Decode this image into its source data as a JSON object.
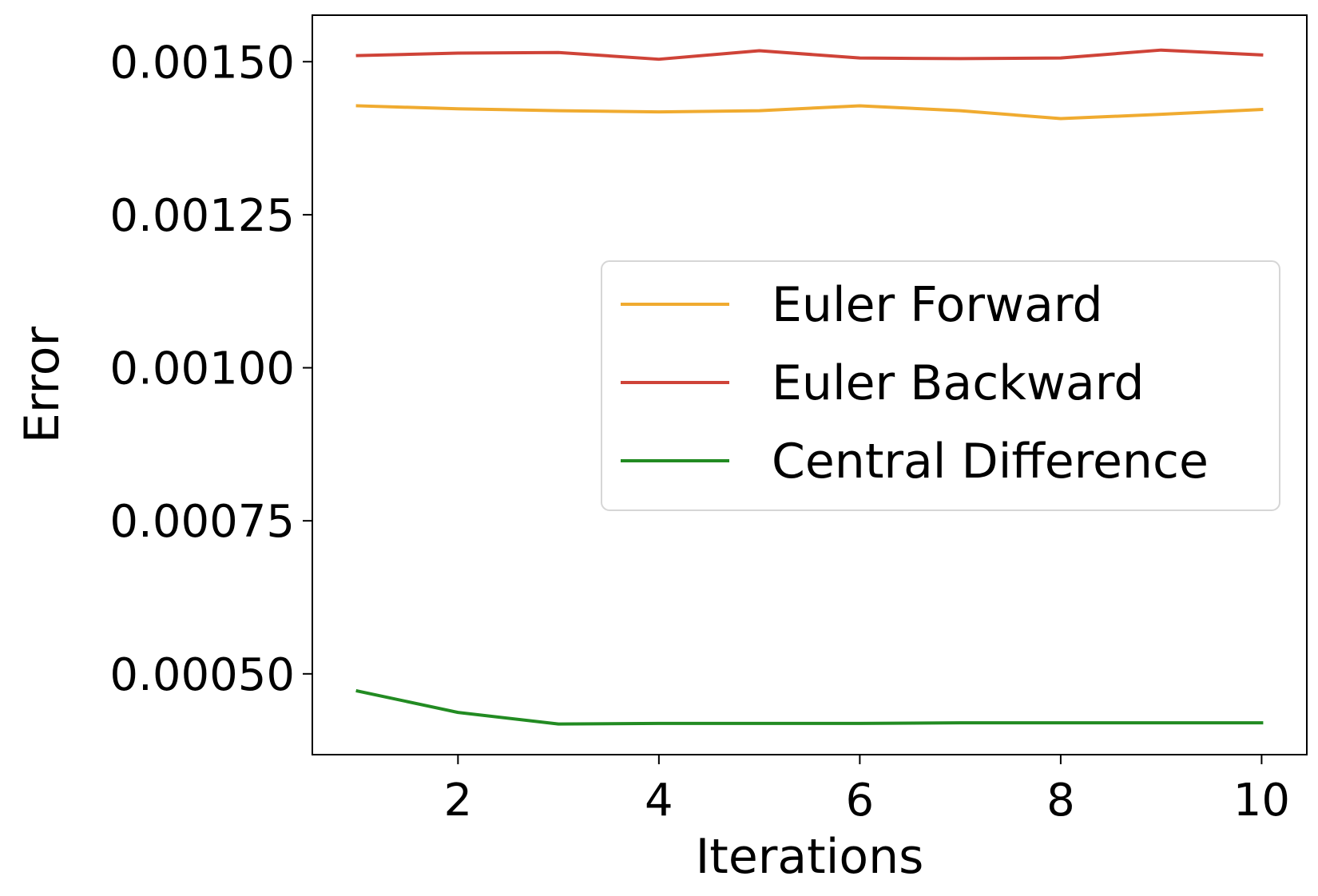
{
  "chart_data": {
    "type": "line",
    "title": "",
    "xlabel": "Iterations",
    "ylabel": "Error",
    "x": [
      1,
      2,
      3,
      4,
      5,
      6,
      7,
      8,
      9,
      10
    ],
    "xlim": [
      0.55,
      10.45
    ],
    "ylim": [
      0.000368,
      0.001576
    ],
    "xticks": [
      2,
      4,
      6,
      8,
      10
    ],
    "xtick_labels": [
      "2",
      "4",
      "6",
      "8",
      "10"
    ],
    "yticks": [
      0.0005,
      0.00075,
      0.001,
      0.00125,
      0.0015
    ],
    "ytick_labels": [
      "0.00050",
      "0.00075",
      "0.00100",
      "0.00125",
      "0.00150"
    ],
    "grid": false,
    "legend_position": "center-right",
    "series": [
      {
        "name": "Euler Forward",
        "color": "#F0AB30",
        "values": [
          0.001428,
          0.001423,
          0.00142,
          0.001418,
          0.00142,
          0.001428,
          0.00142,
          0.001407,
          0.001414,
          0.001422
        ]
      },
      {
        "name": "Euler Backward",
        "color": "#CF4338",
        "values": [
          0.00151,
          0.001514,
          0.001515,
          0.001504,
          0.001518,
          0.001506,
          0.001505,
          0.001506,
          0.001519,
          0.001511
        ]
      },
      {
        "name": "Central Difference",
        "color": "#228B22",
        "values": [
          0.000472,
          0.000437,
          0.000418,
          0.000419,
          0.000419,
          0.000419,
          0.00042,
          0.00042,
          0.00042,
          0.00042
        ]
      }
    ]
  }
}
